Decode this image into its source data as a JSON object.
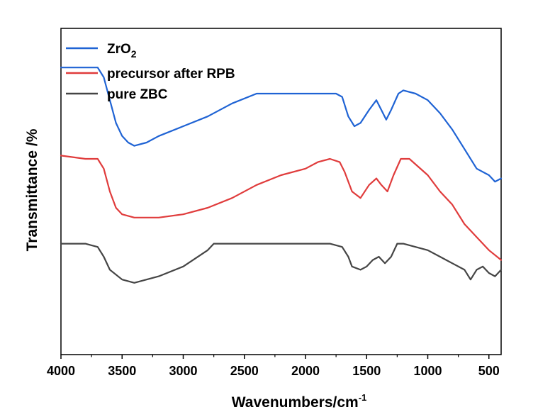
{
  "chart_data": {
    "type": "line",
    "xlabel": "Wavenumbers/cm",
    "xlabel_sup": "-1",
    "ylabel": "Transmittance /%",
    "xlim": [
      4000,
      400
    ],
    "x_reversed": true,
    "x_ticks": [
      4000,
      3500,
      3000,
      2500,
      2000,
      1500,
      1000,
      500
    ],
    "x_tick_labels": [
      "4000",
      "3500",
      "3000",
      "2500",
      "2000",
      "1500",
      "1000",
      "500"
    ],
    "y_ticks_shown": false,
    "grid": false,
    "legend_position": "top-left",
    "series": [
      {
        "name": "ZrO",
        "name_sub": "2",
        "color": "#1f63d4",
        "points": [
          [
            4000,
            0.88
          ],
          [
            3800,
            0.88
          ],
          [
            3700,
            0.88
          ],
          [
            3650,
            0.85
          ],
          [
            3600,
            0.78
          ],
          [
            3550,
            0.71
          ],
          [
            3500,
            0.67
          ],
          [
            3450,
            0.65
          ],
          [
            3400,
            0.64
          ],
          [
            3300,
            0.65
          ],
          [
            3200,
            0.67
          ],
          [
            3000,
            0.7
          ],
          [
            2800,
            0.73
          ],
          [
            2600,
            0.77
          ],
          [
            2400,
            0.8
          ],
          [
            2000,
            0.8
          ],
          [
            1800,
            0.8
          ],
          [
            1750,
            0.8
          ],
          [
            1700,
            0.79
          ],
          [
            1650,
            0.73
          ],
          [
            1600,
            0.7
          ],
          [
            1550,
            0.71
          ],
          [
            1480,
            0.75
          ],
          [
            1420,
            0.78
          ],
          [
            1380,
            0.75
          ],
          [
            1340,
            0.72
          ],
          [
            1300,
            0.75
          ],
          [
            1240,
            0.8
          ],
          [
            1200,
            0.81
          ],
          [
            1100,
            0.8
          ],
          [
            1000,
            0.78
          ],
          [
            900,
            0.74
          ],
          [
            800,
            0.69
          ],
          [
            700,
            0.63
          ],
          [
            600,
            0.57
          ],
          [
            500,
            0.55
          ],
          [
            450,
            0.53
          ],
          [
            400,
            0.54
          ]
        ]
      },
      {
        "name": "precursor after RPB",
        "color": "#e03c3c",
        "points": [
          [
            4000,
            0.61
          ],
          [
            3800,
            0.6
          ],
          [
            3700,
            0.6
          ],
          [
            3650,
            0.57
          ],
          [
            3600,
            0.5
          ],
          [
            3550,
            0.45
          ],
          [
            3500,
            0.43
          ],
          [
            3400,
            0.42
          ],
          [
            3200,
            0.42
          ],
          [
            3000,
            0.43
          ],
          [
            2800,
            0.45
          ],
          [
            2600,
            0.48
          ],
          [
            2400,
            0.52
          ],
          [
            2200,
            0.55
          ],
          [
            2000,
            0.57
          ],
          [
            1900,
            0.59
          ],
          [
            1800,
            0.6
          ],
          [
            1720,
            0.59
          ],
          [
            1680,
            0.56
          ],
          [
            1620,
            0.5
          ],
          [
            1550,
            0.48
          ],
          [
            1480,
            0.52
          ],
          [
            1420,
            0.54
          ],
          [
            1380,
            0.52
          ],
          [
            1330,
            0.5
          ],
          [
            1280,
            0.55
          ],
          [
            1220,
            0.6
          ],
          [
            1150,
            0.6
          ],
          [
            1000,
            0.55
          ],
          [
            900,
            0.5
          ],
          [
            800,
            0.46
          ],
          [
            700,
            0.4
          ],
          [
            600,
            0.36
          ],
          [
            500,
            0.32
          ],
          [
            400,
            0.29
          ]
        ]
      },
      {
        "name": "pure ZBC",
        "color": "#454545",
        "points": [
          [
            4000,
            0.34
          ],
          [
            3800,
            0.34
          ],
          [
            3700,
            0.33
          ],
          [
            3650,
            0.3
          ],
          [
            3600,
            0.26
          ],
          [
            3500,
            0.23
          ],
          [
            3400,
            0.22
          ],
          [
            3200,
            0.24
          ],
          [
            3000,
            0.27
          ],
          [
            2800,
            0.32
          ],
          [
            2750,
            0.34
          ],
          [
            2600,
            0.34
          ],
          [
            2400,
            0.34
          ],
          [
            2000,
            0.34
          ],
          [
            1800,
            0.34
          ],
          [
            1700,
            0.33
          ],
          [
            1650,
            0.3
          ],
          [
            1620,
            0.27
          ],
          [
            1550,
            0.26
          ],
          [
            1500,
            0.27
          ],
          [
            1450,
            0.29
          ],
          [
            1400,
            0.3
          ],
          [
            1350,
            0.28
          ],
          [
            1300,
            0.3
          ],
          [
            1250,
            0.34
          ],
          [
            1200,
            0.34
          ],
          [
            1000,
            0.32
          ],
          [
            900,
            0.3
          ],
          [
            800,
            0.28
          ],
          [
            700,
            0.26
          ],
          [
            650,
            0.23
          ],
          [
            600,
            0.26
          ],
          [
            550,
            0.27
          ],
          [
            500,
            0.25
          ],
          [
            450,
            0.24
          ],
          [
            400,
            0.26
          ]
        ]
      }
    ]
  }
}
